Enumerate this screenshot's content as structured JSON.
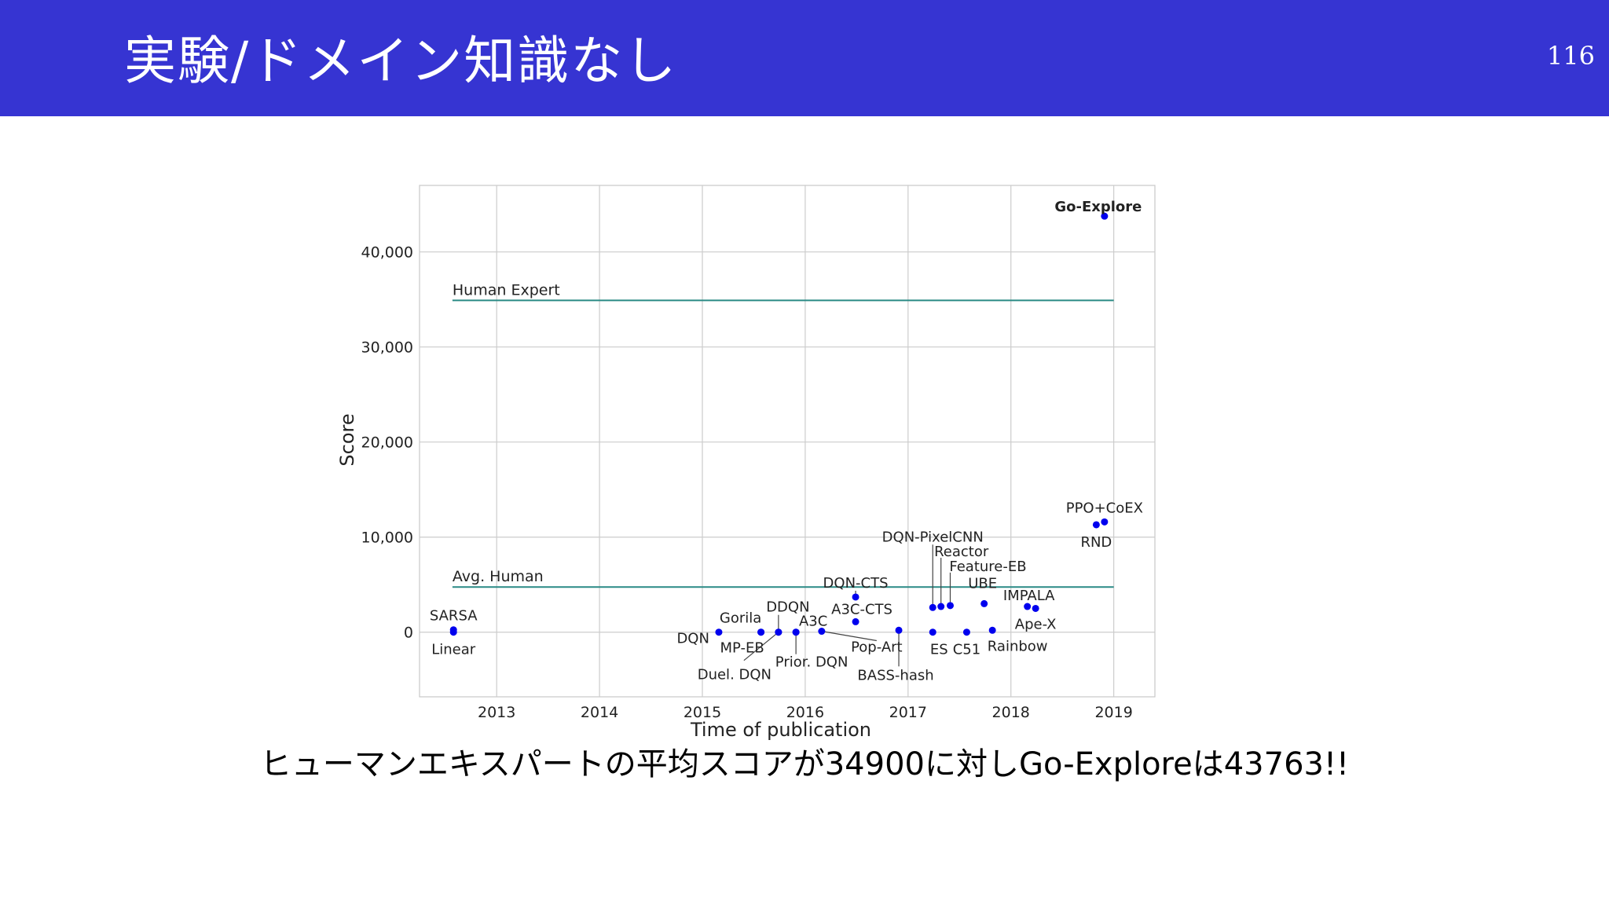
{
  "slide": {
    "title": "実験/ドメイン知識なし",
    "page_number": "116",
    "caption": "ヒューマンエキスパートの平均スコアが34900に対しGo-Exploreは43763!!"
  },
  "colors": {
    "header": "#3634d2",
    "point": "#0000ee",
    "reference_line": "#2a8a85",
    "grid": "#cccccc"
  },
  "chart_data": {
    "type": "scatter",
    "xlabel": "Time of publication",
    "ylabel": "Score",
    "xlim": [
      2012.25,
      2019.4
    ],
    "ylim": [
      -6800,
      47000
    ],
    "x_ticks": [
      2013,
      2014,
      2015,
      2016,
      2017,
      2018,
      2019
    ],
    "y_ticks": [
      0,
      10000,
      20000,
      30000,
      40000
    ],
    "x_tick_labels": [
      "2013",
      "2014",
      "2015",
      "2016",
      "2017",
      "2018",
      "2019"
    ],
    "y_tick_labels": [
      "0",
      "10,000",
      "20,000",
      "30,000",
      "40,000"
    ],
    "grid": true,
    "reference_lines": [
      {
        "label": "Human Expert",
        "value": 34900,
        "x_start": 2012.57,
        "x_end": 2019.0
      },
      {
        "label": "Avg. Human",
        "value": 4750,
        "x_start": 2012.57,
        "x_end": 2019.0
      }
    ],
    "points": [
      {
        "label": "SARSA",
        "x": 2012.58,
        "y": 250
      },
      {
        "label": "Linear",
        "x": 2012.58,
        "y": 0
      },
      {
        "label": "DQN",
        "x": 2015.16,
        "y": 0
      },
      {
        "label": "Gorila",
        "x": 2015.57,
        "y": 0
      },
      {
        "label": "MP-EB",
        "x": 2015.57,
        "y": 0
      },
      {
        "label": "DDQN",
        "x": 2015.74,
        "y": 0
      },
      {
        "label": "Duel. DQN",
        "x": 2015.74,
        "y": 0
      },
      {
        "label": "A3C",
        "x": 2015.91,
        "y": 0
      },
      {
        "label": "Prior. DQN",
        "x": 2015.91,
        "y": 0
      },
      {
        "label": "Pop-Art",
        "x": 2016.16,
        "y": 100
      },
      {
        "label": "DQN-CTS",
        "x": 2016.49,
        "y": 3700
      },
      {
        "label": "A3C-CTS",
        "x": 2016.49,
        "y": 1100
      },
      {
        "label": "BASS-hash",
        "x": 2016.91,
        "y": 200
      },
      {
        "label": "DQN-PixelCNN",
        "x": 2017.24,
        "y": 2600
      },
      {
        "label": "Reactor",
        "x": 2017.32,
        "y": 2700
      },
      {
        "label": "Feature-EB",
        "x": 2017.41,
        "y": 2800
      },
      {
        "label": "ES",
        "x": 2017.24,
        "y": 0
      },
      {
        "label": "C51",
        "x": 2017.57,
        "y": 0
      },
      {
        "label": "UBE",
        "x": 2017.74,
        "y": 3000
      },
      {
        "label": "Rainbow",
        "x": 2017.82,
        "y": 200
      },
      {
        "label": "IMPALA",
        "x": 2018.16,
        "y": 2700
      },
      {
        "label": "Ape-X",
        "x": 2018.24,
        "y": 2500
      },
      {
        "label": "RND",
        "x": 2018.83,
        "y": 11300
      },
      {
        "label": "PPO+CoEX",
        "x": 2018.91,
        "y": 11600
      },
      {
        "label": "Go-Explore",
        "x": 2018.91,
        "y": 43763
      }
    ]
  }
}
